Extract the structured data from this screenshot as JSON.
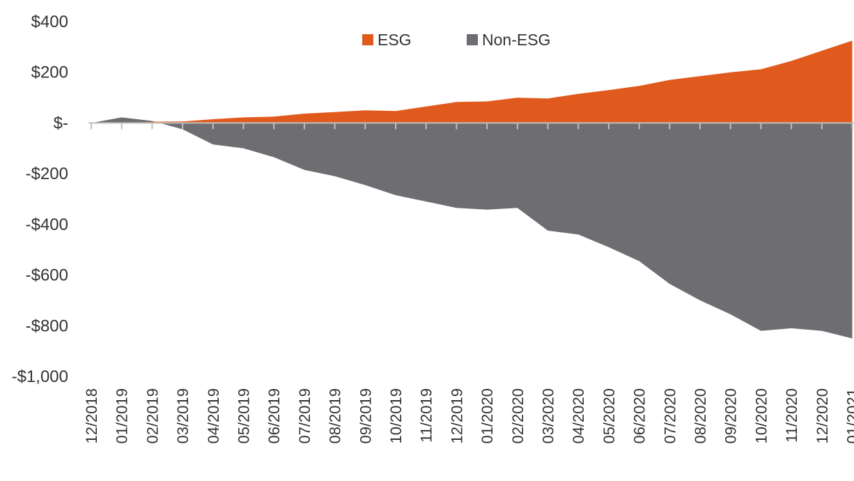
{
  "chart_data": {
    "type": "area",
    "title": "",
    "xlabel": "",
    "ylabel": "",
    "ylim": [
      -1000,
      400
    ],
    "yticks": [
      {
        "value": 400,
        "label": "$400"
      },
      {
        "value": 200,
        "label": "$200"
      },
      {
        "value": 0,
        "label": "$-"
      },
      {
        "value": -200,
        "label": "-$200"
      },
      {
        "value": -400,
        "label": "-$400"
      },
      {
        "value": -600,
        "label": "-$600"
      },
      {
        "value": -800,
        "label": "-$800"
      },
      {
        "value": -1000,
        "label": "-$1,000"
      }
    ],
    "categories": [
      "12/2018",
      "01/2019",
      "02/2019",
      "03/2019",
      "04/2019",
      "05/2019",
      "06/2019",
      "07/2019",
      "08/2019",
      "09/2019",
      "10/2019",
      "11/2019",
      "12/2019",
      "01/2020",
      "02/2020",
      "03/2020",
      "04/2020",
      "05/2020",
      "06/2020",
      "07/2020",
      "08/2020",
      "09/2020",
      "10/2020",
      "11/2020",
      "12/2020",
      "01/2021"
    ],
    "series": [
      {
        "name": "ESG",
        "color": "#E05A1E",
        "values": [
          0,
          0,
          5,
          6,
          15,
          22,
          25,
          37,
          43,
          50,
          47,
          65,
          83,
          85,
          100,
          97,
          115,
          130,
          146,
          170,
          185,
          200,
          212,
          245,
          285,
          325
        ]
      },
      {
        "name": "Non-ESG",
        "color": "#6E6D72",
        "values": [
          0,
          22,
          8,
          -25,
          -85,
          -100,
          -135,
          -185,
          -210,
          -245,
          -285,
          -310,
          -335,
          -342,
          -335,
          -425,
          -440,
          -490,
          -545,
          -635,
          -700,
          -755,
          -820,
          -810,
          -820,
          -850
        ]
      }
    ],
    "legend_position": "top-center",
    "grid": false
  }
}
